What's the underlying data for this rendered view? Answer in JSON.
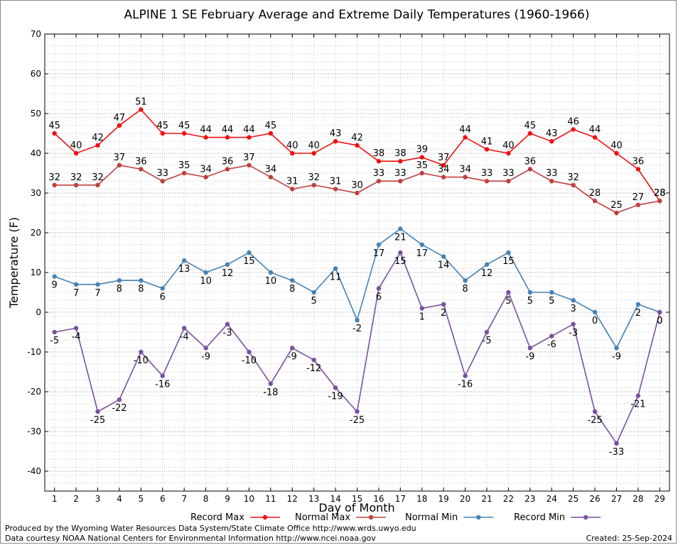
{
  "chart_data": {
    "type": "line",
    "title": "ALPINE 1 SE February Average and Extreme Daily Temperatures (1960-1966)",
    "xlabel": "Day of Month",
    "ylabel": "Temperature (F)",
    "x": [
      1,
      2,
      3,
      4,
      5,
      6,
      7,
      8,
      9,
      10,
      11,
      12,
      13,
      14,
      15,
      16,
      17,
      18,
      19,
      20,
      21,
      22,
      23,
      24,
      25,
      26,
      27,
      28,
      29
    ],
    "ylim": [
      -45,
      70
    ],
    "yticks": [
      -40,
      -30,
      -20,
      -10,
      0,
      10,
      20,
      30,
      40,
      50,
      60,
      70
    ],
    "grid": true,
    "legend_position": "bottom",
    "series": [
      {
        "name": "Record Max",
        "color": "#ee1111",
        "label_position": "above",
        "values": [
          45,
          40,
          42,
          47,
          51,
          45,
          45,
          44,
          44,
          44,
          45,
          40,
          40,
          43,
          42,
          38,
          38,
          39,
          37,
          44,
          41,
          40,
          45,
          43,
          46,
          44,
          40,
          36,
          28
        ]
      },
      {
        "name": "Normal Max",
        "color": "#c04040",
        "label_position": "above",
        "values": [
          32,
          32,
          32,
          37,
          36,
          33,
          35,
          34,
          36,
          37,
          34,
          31,
          32,
          31,
          30,
          33,
          33,
          35,
          34,
          34,
          33,
          33,
          36,
          33,
          32,
          28,
          25,
          27,
          28
        ]
      },
      {
        "name": "Normal Min",
        "color": "#4682b4",
        "label_position": "below",
        "values": [
          9,
          7,
          7,
          8,
          8,
          6,
          13,
          10,
          12,
          15,
          10,
          8,
          5,
          11,
          -2,
          17,
          21,
          17,
          14,
          8,
          12,
          15,
          5,
          5,
          3,
          0,
          -9,
          2,
          0
        ]
      },
      {
        "name": "Record Min",
        "color": "#7b4f9d",
        "label_position": "below",
        "values": [
          -5,
          -4,
          -25,
          -22,
          -10,
          -16,
          -4,
          -9,
          -3,
          -10,
          -18,
          -9,
          -12,
          -19,
          -25,
          6,
          15,
          1,
          2,
          -16,
          -5,
          5,
          -9,
          -6,
          -3,
          -25,
          -33,
          -21,
          0
        ]
      }
    ]
  },
  "footer": {
    "produced_by": "Produced by the Wyoming Water Resources Data System/State Climate Office http://www.wrds.uwyo.edu",
    "courtesy": "Data courtesy NOAA National Centers for Environmental Information http://www.ncei.noaa.gov",
    "created": "Created:  25-Sep-2024"
  }
}
